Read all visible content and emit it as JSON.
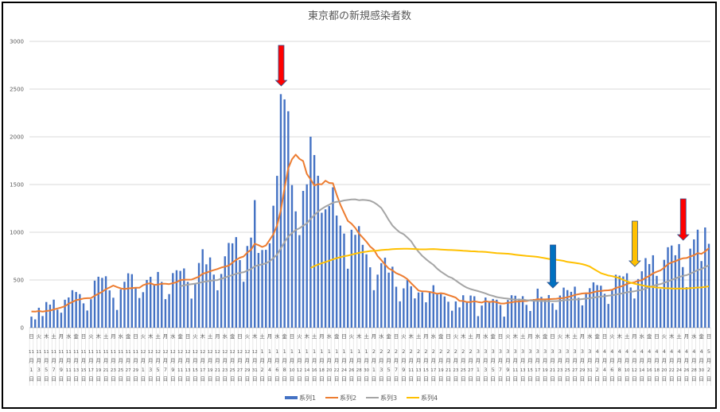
{
  "chart_data": {
    "type": "bar",
    "title": "東京都の新規感染者数",
    "ylim": [
      0,
      3000
    ],
    "yticks": [
      "0",
      "500",
      "1000",
      "1500",
      "2000",
      "2500",
      "3000"
    ],
    "grid": true,
    "legend_position": "bottom",
    "categories": [
      "11月1日",
      "11月2日",
      "11月3日",
      "11月4日",
      "11月5日",
      "11月6日",
      "11月7日",
      "11月8日",
      "11月9日",
      "11月10日",
      "11月11日",
      "11月12日",
      "11月13日",
      "11月14日",
      "11月15日",
      "11月16日",
      "11月17日",
      "11月18日",
      "11月19日",
      "11月20日",
      "11月21日",
      "11月22日",
      "11月23日",
      "11月24日",
      "11月25日",
      "11月26日",
      "11月27日",
      "11月28日",
      "11月29日",
      "11月30日",
      "12月1日",
      "12月2日",
      "12月3日",
      "12月4日",
      "12月5日",
      "12月6日",
      "12月7日",
      "12月8日",
      "12月9日",
      "12月10日",
      "12月11日",
      "12月12日",
      "12月13日",
      "12月14日",
      "12月15日",
      "12月16日",
      "12月17日",
      "12月18日",
      "12月19日",
      "12月20日",
      "12月21日",
      "12月22日",
      "12月23日",
      "12月24日",
      "12月25日",
      "12月26日",
      "12月27日",
      "12月28日",
      "12月29日",
      "12月30日",
      "12月31日",
      "1月1日",
      "1月2日",
      "1月3日",
      "1月4日",
      "1月5日",
      "1月6日",
      "1月7日",
      "1月8日",
      "1月9日",
      "1月10日",
      "1月11日",
      "1月12日",
      "1月13日",
      "1月14日",
      "1月15日",
      "1月16日",
      "1月17日",
      "1月18日",
      "1月19日",
      "1月20日",
      "1月21日",
      "1月22日",
      "1月23日",
      "1月24日",
      "1月25日",
      "1月26日",
      "1月27日",
      "1月28日",
      "1月29日",
      "1月30日",
      "1月31日",
      "2月1日",
      "2月2日",
      "2月3日",
      "2月4日",
      "2月5日",
      "2月6日",
      "2月7日",
      "2月8日",
      "2月9日",
      "2月10日",
      "2月11日",
      "2月12日",
      "2月13日",
      "2月14日",
      "2月15日",
      "2月16日",
      "2月17日",
      "2月18日",
      "2月19日",
      "2月20日",
      "2月21日",
      "2月22日",
      "2月23日",
      "2月24日",
      "2月25日",
      "2月26日",
      "2月27日",
      "2月28日",
      "3月1日",
      "3月2日",
      "3月3日",
      "3月4日",
      "3月5日",
      "3月6日",
      "3月7日",
      "3月8日",
      "3月9日",
      "3月10日",
      "3月11日",
      "3月12日",
      "3月13日",
      "3月14日",
      "3月15日",
      "3月16日",
      "3月17日",
      "3月18日",
      "3月19日",
      "3月20日",
      "3月21日",
      "3月22日",
      "3月23日",
      "3月24日",
      "3月25日",
      "3月26日",
      "3月27日",
      "3月28日",
      "3月29日",
      "3月30日",
      "3月31日",
      "4月1日",
      "4月2日",
      "4月3日",
      "4月4日",
      "4月5日",
      "4月6日",
      "4月7日",
      "4月8日",
      "4月9日",
      "4月10日",
      "4月11日",
      "4月12日",
      "4月13日",
      "4月14日",
      "4月15日",
      "4月16日",
      "4月17日",
      "4月18日",
      "4月19日",
      "4月20日",
      "4月21日",
      "4月22日",
      "4月23日",
      "4月24日",
      "4月25日",
      "4月26日",
      "4月27日",
      "4月28日",
      "4月29日",
      "4月30日",
      "5月1日",
      "5月2日"
    ],
    "weekdays": [
      "日",
      "月",
      "火",
      "水",
      "木",
      "金",
      "土"
    ],
    "series": [
      {
        "name": "系列1",
        "type": "bar",
        "color": "#4472C4",
        "values": [
          116,
          87,
          209,
          122,
          269,
          242,
          294,
          189,
          157,
          293,
          317,
          393,
          374,
          352,
          255,
          180,
          298,
          493,
          534,
          522,
          539,
          391,
          314,
          186,
          401,
          481,
          570,
          561,
          418,
          311,
          372,
          500,
          533,
          449,
          584,
          480,
          299,
          352,
          572,
          602,
          595,
          621,
          480,
          305,
          460,
          678,
          822,
          664,
          736,
          556,
          392,
          563,
          748,
          888,
          884,
          949,
          708,
          481,
          856,
          944,
          1337,
          783,
          814,
          816,
          884,
          1278,
          1591,
          2447,
          2392,
          2268,
          1494,
          1219,
          970,
          1433,
          1502,
          2001,
          1809,
          1592,
          1204,
          1240,
          1274,
          1471,
          1175,
          1070,
          986,
          618,
          1026,
          973,
          1064,
          868,
          769,
          633,
          393,
          556,
          676,
          734,
          577,
          639,
          429,
          276,
          412,
          499,
          434,
          307,
          369,
          371,
          266,
          378,
          445,
          353,
          353,
          327,
          272,
          178,
          275,
          213,
          340,
          270,
          337,
          329,
          121,
          232,
          316,
          279,
          301,
          293,
          237,
          116,
          290,
          340,
          335,
          304,
          330,
          239,
          175,
          300,
          409,
          323,
          303,
          342,
          256,
          187,
          337,
          420,
          394,
          376,
          430,
          313,
          234,
          364,
          414,
          475,
          446,
          440,
          355,
          249,
          399,
          555,
          545,
          537,
          570,
          421,
          306,
          510,
          591,
          729,
          667,
          759,
          543,
          405,
          711,
          843,
          861,
          759,
          876,
          635,
          425,
          828,
          925,
          1027,
          698,
          1050,
          879
        ]
      },
      {
        "name": "系列2",
        "type": "line",
        "color": "#ED7D31",
        "values": [
          170,
          168,
          175,
          168,
          175,
          179,
          191,
          202,
          212,
          224,
          252,
          269,
          288,
          296,
          306,
          309,
          310,
          335,
          355,
          376,
          403,
          422,
          442,
          426,
          412,
          405,
          412,
          415,
          419,
          418,
          445,
          459,
          466,
          449,
          452,
          461,
          460,
          457,
          467,
          477,
          498,
          503,
          503,
          504,
          519,
          534,
          566,
          576,
          592,
          603,
          615,
          630,
          640,
          650,
          681,
          711,
          733,
          746,
          788,
          816,
          880,
          865,
          846,
          862,
          919,
          979,
          1072,
          1230,
          1460,
          1668,
          1765,
          1813,
          1769,
          1746,
          1611,
          1555,
          1490,
          1504,
          1502,
          1540,
          1517,
          1513,
          1395,
          1289,
          1203,
          1119,
          1089,
          1046,
          987,
          944,
          901,
          850,
          818,
          751,
          708,
          661,
          620,
          601,
          572,
          555,
          535,
          509,
          467,
          428,
          389,
          381,
          380,
          375,
          367,
          356,
          362,
          356,
          342,
          329,
          315,
          282,
          280,
          268,
          269,
          277,
          269,
          263,
          278,
          269,
          274,
          267,
          254,
          253,
          262,
          265,
          273,
          274,
          279,
          279,
          288,
          289,
          299,
          297,
          297,
          299,
          301,
          303,
          308,
          310,
          320,
          330,
          343,
          351,
          358,
          362,
          361,
          372,
          382,
          384,
          390,
          392,
          397,
          417,
          427,
          440,
          459,
          468,
          476,
          492,
          497,
          523,
          542,
          569,
          586,
          601,
          629,
          665,
          684,
          697,
          714,
          727,
          730,
          747,
          758,
          782,
          773,
          798,
          833
        ]
      },
      {
        "name": "系列3",
        "type": "line",
        "color": "#A5A5A5",
        "values": [
          null,
          null,
          null,
          null,
          null,
          null,
          null,
          null,
          null,
          null,
          null,
          null,
          null,
          null,
          null,
          null,
          null,
          null,
          null,
          null,
          null,
          null,
          null,
          null,
          null,
          null,
          null,
          null,
          null,
          null,
          null,
          null,
          null,
          null,
          null,
          null,
          null,
          null,
          null,
          null,
          434,
          443,
          451,
          456,
          462,
          468,
          479,
          484,
          491,
          497,
          499,
          513,
          525,
          540,
          551,
          565,
          575,
          581,
          598,
          614,
          643,
          655,
          663,
          675,
          696,
          729,
          766,
          831,
          896,
          954,
          991,
          1023,
          1042,
          1068,
          1093,
          1141,
          1179,
          1216,
          1245,
          1269,
          1288,
          1309,
          1319,
          1323,
          1333,
          1338,
          1344,
          1345,
          1336,
          1339,
          1337,
          1330,
          1313,
          1287,
          1254,
          1193,
          1128,
          1070,
          1032,
          998,
          979,
          945,
          907,
          847,
          795,
          752,
          718,
          687,
          658,
          618,
          588,
          562,
          536,
          521,
          494,
          467,
          441,
          419,
          404,
          393,
          383,
          372,
          359,
          343,
          333,
          321,
          314,
          308,
          304,
          298,
          294,
          294,
          293,
          288,
          285,
          282,
          281,
          280,
          278,
          279,
          278,
          278,
          281,
          288,
          290,
          294,
          297,
          296,
          300,
          305,
          309,
          316,
          321,
          326,
          330,
          335,
          339,
          347,
          354,
          362,
          371,
          377,
          382,
          390,
          396,
          411,
          424,
          439,
          449,
          457,
          470,
          485,
          502,
          515,
          531,
          543,
          550,
          566,
          584,
          604,
          613,
          635,
          654
        ]
      },
      {
        "name": "系列4",
        "type": "line",
        "color": "#FFC000",
        "values": [
          null,
          null,
          null,
          null,
          null,
          null,
          null,
          null,
          null,
          null,
          null,
          null,
          null,
          null,
          null,
          null,
          null,
          null,
          null,
          null,
          null,
          null,
          null,
          null,
          null,
          null,
          null,
          null,
          null,
          null,
          null,
          null,
          null,
          null,
          null,
          null,
          null,
          null,
          null,
          null,
          null,
          null,
          null,
          null,
          null,
          null,
          null,
          null,
          null,
          null,
          null,
          null,
          null,
          null,
          null,
          null,
          null,
          null,
          null,
          null,
          null,
          null,
          null,
          null,
          null,
          null,
          null,
          null,
          null,
          null,
          null,
          null,
          null,
          null,
          null,
          626,
          645,
          662,
          676,
          688,
          702,
          716,
          728,
          738,
          749,
          755,
          765,
          775,
          784,
          792,
          797,
          803,
          805,
          808,
          813,
          817,
          819,
          823,
          825,
          826,
          827,
          827,
          826,
          824,
          822,
          821,
          821,
          823,
          824,
          822,
          819,
          817,
          815,
          813,
          812,
          809,
          806,
          804,
          801,
          800,
          797,
          796,
          793,
          789,
          786,
          782,
          779,
          777,
          775,
          771,
          765,
          760,
          756,
          752,
          749,
          746,
          742,
          735,
          728,
          721,
          716,
          712,
          706,
          700,
          689,
          684,
          679,
          673,
          666,
          655,
          641,
          617,
          594,
          572,
          559,
          547,
          540,
          530,
          519,
          501,
          486,
          472,
          462,
          453,
          445,
          436,
          430,
          426,
          421,
          418,
          415,
          413,
          411,
          409,
          411,
          411,
          411,
          414,
          417,
          421,
          422,
          427,
          433
        ]
      }
    ],
    "annotations": [
      {
        "type": "arrow-down",
        "date": "1月7日",
        "color": "#FF0000"
      },
      {
        "type": "arrow-down",
        "date": "3月21日",
        "color": "#0070C0"
      },
      {
        "type": "arrow-down",
        "date": "4月12日",
        "color": "#FFC000"
      },
      {
        "type": "arrow-down",
        "date": "4月25日",
        "color": "#FF0000"
      }
    ]
  }
}
